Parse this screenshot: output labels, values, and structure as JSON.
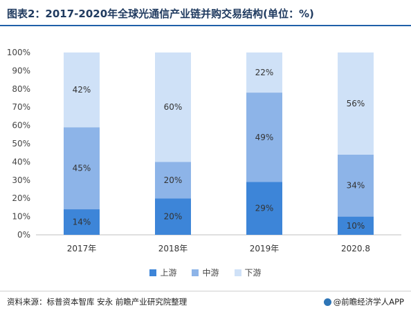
{
  "title": "图表2：2017-2020年全球光通信产业链并购交易结构(单位：%)",
  "source": "资料来源：标普资本智库 安永 前瞻产业研究院整理",
  "brand": "@前瞻经济学人APP",
  "colors": {
    "上游": "#3d85d8",
    "中游": "#8db4e8",
    "下游": "#cfe1f7"
  },
  "chart_data": {
    "type": "bar",
    "stacked": true,
    "categories": [
      "2017年",
      "2018年",
      "2019年",
      "2020.8"
    ],
    "series": [
      {
        "name": "上游",
        "values": [
          14,
          20,
          29,
          10
        ]
      },
      {
        "name": "中游",
        "values": [
          45,
          20,
          49,
          34
        ]
      },
      {
        "name": "下游",
        "values": [
          42,
          60,
          22,
          56
        ]
      }
    ],
    "data_labels": [
      [
        "14%",
        "20%",
        "29%",
        "10%"
      ],
      [
        "45%",
        "20%",
        "49%",
        "34%"
      ],
      [
        "42%",
        "60%",
        "22%",
        "56%"
      ]
    ],
    "ylim": [
      0,
      100
    ],
    "yticks": [
      "0%",
      "10%",
      "20%",
      "30%",
      "40%",
      "50%",
      "60%",
      "70%",
      "80%",
      "90%",
      "100%"
    ],
    "legend_position": "bottom",
    "grid": false
  }
}
